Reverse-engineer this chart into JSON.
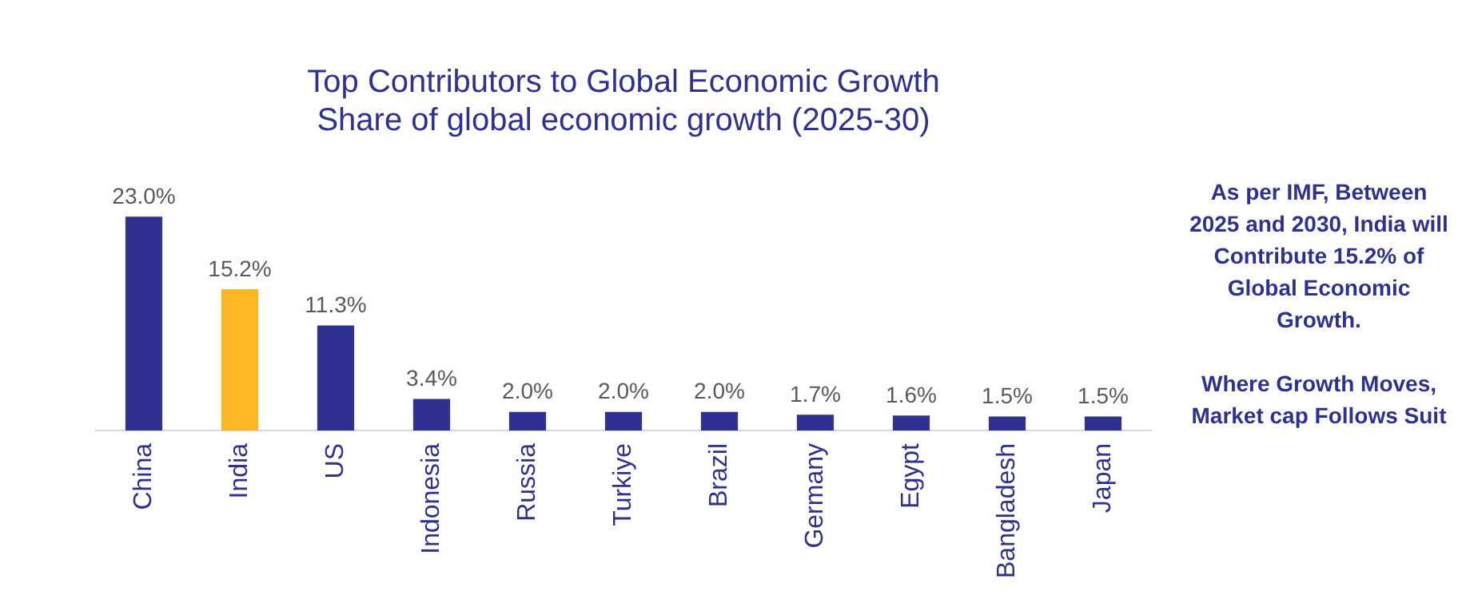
{
  "chart_data": {
    "type": "bar",
    "title": "Top Contributors to Global Economic Growth",
    "subtitle": "Share of global economic growth (2025-30)",
    "categories": [
      "China",
      "India",
      "US",
      "Indonesia",
      "Russia",
      "Turkiye",
      "Brazil",
      "Germany",
      "Egypt",
      "Bangladesh",
      "Japan"
    ],
    "values": [
      23.0,
      15.2,
      11.3,
      3.4,
      2.0,
      2.0,
      2.0,
      1.7,
      1.6,
      1.5,
      1.5
    ],
    "colors": [
      "#2e3192",
      "#fbb726",
      "#2e3192",
      "#2e3192",
      "#2e3192",
      "#2e3192",
      "#2e3192",
      "#2e3192",
      "#2e3192",
      "#2e3192",
      "#2e3192"
    ],
    "value_labels": [
      "23.0%",
      "15.2%",
      "11.3%",
      "3.4%",
      "2.0%",
      "2.0%",
      "2.0%",
      "1.7%",
      "1.6%",
      "1.5%",
      "1.5%"
    ],
    "grid": false,
    "legend": false,
    "annotations": [
      "As per IMF, Between 2025 and 2030, India will Contribute 15.2% of Global Economic Growth.",
      "Where Growth Moves, Market cap Follows Suit"
    ]
  }
}
